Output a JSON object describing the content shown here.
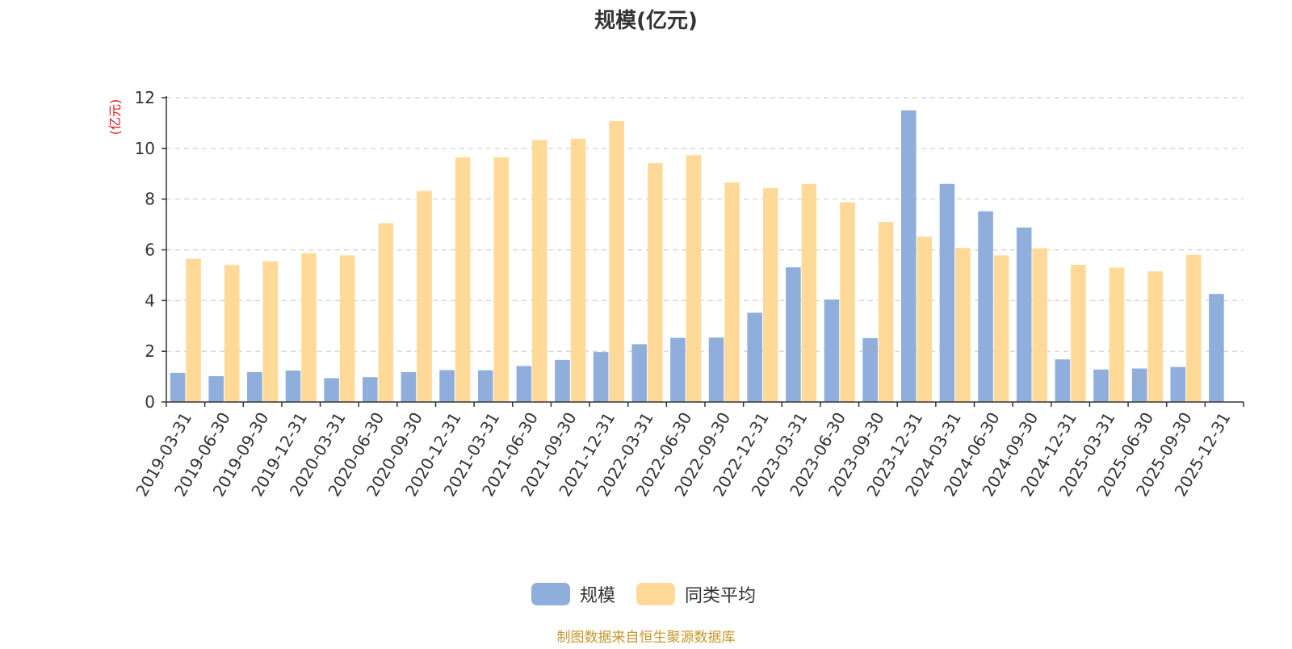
{
  "chart_data": {
    "type": "bar",
    "title": "规模(亿元)",
    "ylabel": "(亿元)",
    "xlabel": "",
    "ylim": [
      0,
      12
    ],
    "yticks": [
      0,
      2,
      4,
      6,
      8,
      10,
      12
    ],
    "grid": true,
    "legend_position": "bottom-center",
    "categories": [
      "2019-03-31",
      "2019-06-30",
      "2019-09-30",
      "2019-12-31",
      "2020-03-31",
      "2020-06-30",
      "2020-09-30",
      "2020-12-31",
      "2021-03-31",
      "2021-06-30",
      "2021-09-30",
      "2021-12-31",
      "2022-03-31",
      "2022-06-30",
      "2022-09-30",
      "2022-12-31",
      "2023-03-31",
      "2023-06-30",
      "2023-09-30",
      "2023-12-31",
      "2024-03-31",
      "2024-06-30",
      "2024-09-30",
      "2024-12-31",
      "2025-03-31",
      "2025-06-30",
      "2025-09-30",
      "2025-12-31"
    ],
    "series": [
      {
        "name": "规模",
        "color": "#8faedb",
        "values": [
          1.15,
          1.02,
          1.18,
          1.24,
          0.94,
          0.98,
          1.18,
          1.26,
          1.25,
          1.42,
          1.66,
          1.97,
          2.28,
          2.53,
          2.54,
          3.52,
          5.31,
          4.04,
          2.52,
          11.5,
          8.6,
          7.52,
          6.88,
          1.68,
          1.28,
          1.32,
          1.38,
          4.26
        ]
      },
      {
        "name": "同类平均",
        "color": "#ffd997",
        "values": [
          5.65,
          5.4,
          5.55,
          5.87,
          5.78,
          7.05,
          8.32,
          9.65,
          9.65,
          10.33,
          10.38,
          11.08,
          9.42,
          9.73,
          8.66,
          8.43,
          8.6,
          7.88,
          7.1,
          6.52,
          6.07,
          5.78,
          6.06,
          5.41,
          5.3,
          5.15,
          5.8,
          null
        ]
      }
    ]
  },
  "source_note": "制图数据来自恒生聚源数据库"
}
